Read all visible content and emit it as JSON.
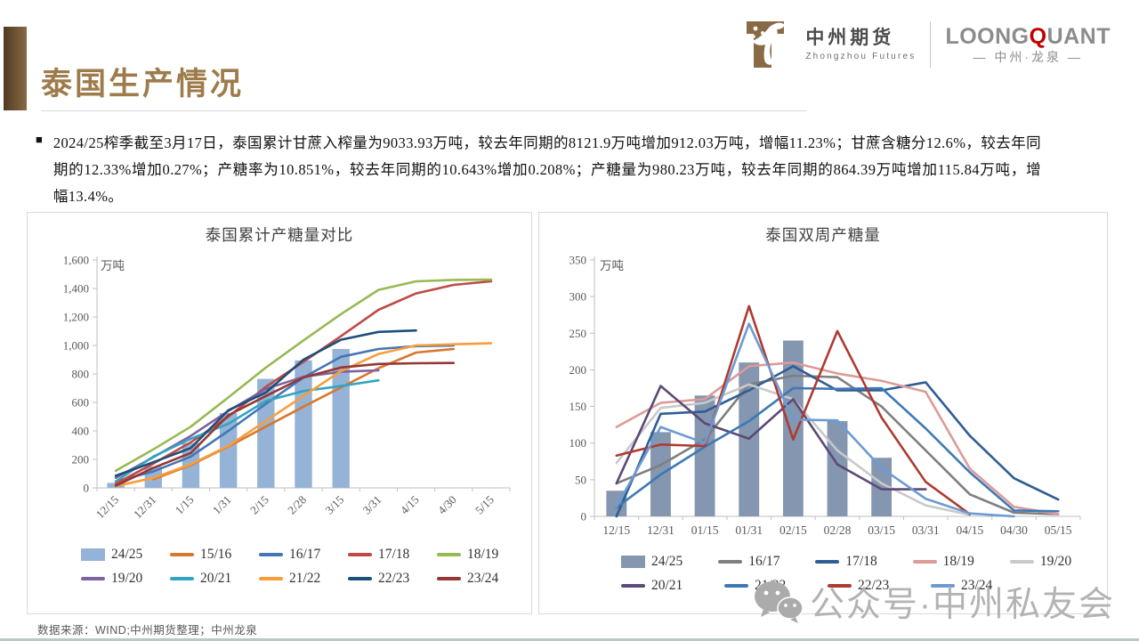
{
  "page": {
    "title": "泰国生产情况"
  },
  "header": {
    "logo1": {
      "name_cn": "中州期货",
      "name_en": "Zhongzhou Futures"
    },
    "logo2": {
      "brand_pre": "LOONG",
      "brand_q": "Q",
      "brand_post": "UANT",
      "sub": "— 中州·龙泉 —"
    }
  },
  "bullet": {
    "marker": "■",
    "text": "2024/25榨季截至3月17日，泰国累计甘蔗入榨量为9033.93万吨，较去年同期的8121.9万吨增加912.03万吨，增幅11.23%；甘蔗含糖分12.6%，较去年同期的12.33%增加0.27%；产糖率为10.851%，较去年同期的10.643%增加0.208%；产糖量为980.23万吨，较去年同期的864.39万吨增加115.84万吨，增幅13.4%。"
  },
  "source_note": "数据来源：WIND;中州期货整理；中州龙泉",
  "watermark": {
    "icon": "wechat-icon",
    "text": "公众号·中州私友会"
  },
  "colors": {
    "title_brown": "#9e7b4a",
    "bar_block_brown": "#7a5a38",
    "brand_red": "#c00000",
    "axis_gray": "#bfbfbf"
  },
  "chart_data": [
    {
      "type": "bar+line",
      "title": "泰国累计产糖量对比",
      "ylabel": "万吨",
      "ylim": [
        0,
        1600
      ],
      "ytick_step": 200,
      "x_rotated": true,
      "legend_per_row": 5,
      "categories": [
        "12/15",
        "12/31",
        "1/15",
        "1/31",
        "2/15",
        "2/28",
        "3/15",
        "3/31",
        "4/15",
        "4/30",
        "5/15"
      ],
      "series": [
        {
          "name": "24/25",
          "type": "bar",
          "color": "#95b3d7",
          "values": [
            35,
            150,
            315,
            525,
            765,
            895,
            975,
            null,
            null,
            null,
            null
          ]
        },
        {
          "name": "15/16",
          "type": "line",
          "color": "#d9772e",
          "values": [
            null,
            60,
            160,
            290,
            430,
            570,
            705,
            840,
            950,
            975,
            null
          ]
        },
        {
          "name": "16/17",
          "type": "line",
          "color": "#4576b5",
          "values": [
            45,
            115,
            220,
            400,
            590,
            775,
            920,
            975,
            995,
            1000,
            null
          ]
        },
        {
          "name": "17/18",
          "type": "line",
          "color": "#be4b48",
          "values": [
            30,
            170,
            320,
            500,
            710,
            885,
            1065,
            1250,
            1365,
            1425,
            1450
          ]
        },
        {
          "name": "18/19",
          "type": "line",
          "color": "#98b954",
          "values": [
            120,
            270,
            430,
            635,
            845,
            1035,
            1220,
            1390,
            1450,
            1460,
            1462
          ]
        },
        {
          "name": "19/20",
          "type": "line",
          "color": "#7e62a1",
          "values": [
            70,
            215,
            365,
            540,
            695,
            780,
            815,
            825,
            null,
            null,
            null
          ]
        },
        {
          "name": "20/21",
          "type": "line",
          "color": "#33a5bf",
          "values": [
            45,
            220,
            345,
            450,
            610,
            680,
            715,
            755,
            null,
            null,
            null
          ]
        },
        {
          "name": "21/22",
          "type": "line",
          "color": "#f99d3b",
          "values": [
            12,
            70,
            165,
            295,
            470,
            645,
            820,
            940,
            1000,
            1008,
            1015
          ]
        },
        {
          "name": "22/23",
          "type": "line",
          "color": "#1f4e79",
          "values": [
            85,
            180,
            280,
            545,
            670,
            900,
            1040,
            1095,
            1105,
            null,
            null
          ]
        },
        {
          "name": "23/24",
          "type": "line",
          "color": "#953735",
          "values": [
            15,
            140,
            245,
            510,
            645,
            775,
            845,
            870,
            875,
            877,
            null
          ]
        }
      ]
    },
    {
      "type": "bar+line",
      "title": "泰国双周产糖量",
      "ylabel": "万吨",
      "ylim": [
        0,
        350
      ],
      "ytick_step": 50,
      "x_rotated": false,
      "legend_per_row": 5,
      "categories": [
        "12/15",
        "12/31",
        "01/15",
        "01/31",
        "02/15",
        "02/28",
        "03/15",
        "03/31",
        "04/15",
        "04/30",
        "05/15"
      ],
      "series": [
        {
          "name": "24/25",
          "type": "bar",
          "color": "#8496b0",
          "values": [
            35,
            115,
            165,
            210,
            240,
            130,
            80,
            null,
            null,
            null,
            null
          ]
        },
        {
          "name": "16/17",
          "type": "line",
          "color": "#7f7f7f",
          "values": [
            45,
            70,
            105,
            180,
            192,
            190,
            150,
            90,
            30,
            5,
            3
          ]
        },
        {
          "name": "17/18",
          "type": "line",
          "color": "#2f5d94",
          "values": [
            0,
            140,
            143,
            172,
            205,
            172,
            172,
            183,
            110,
            52,
            23
          ]
        },
        {
          "name": "18/19",
          "type": "line",
          "color": "#dc9b98",
          "values": [
            122,
            155,
            160,
            205,
            210,
            195,
            185,
            170,
            65,
            13,
            3
          ]
        },
        {
          "name": "19/20",
          "type": "line",
          "color": "#c9c9c9",
          "values": [
            73,
            148,
            155,
            180,
            160,
            90,
            45,
            15,
            2,
            null,
            null
          ]
        },
        {
          "name": "20/21",
          "type": "line",
          "color": "#5b4a77",
          "values": [
            45,
            178,
            127,
            106,
            160,
            71,
            37,
            37,
            null,
            null,
            null
          ]
        },
        {
          "name": "21/22",
          "type": "line",
          "color": "#3e78b5",
          "values": [
            12,
            57,
            95,
            130,
            175,
            174,
            175,
            120,
            60,
            8,
            7
          ]
        },
        {
          "name": "22/23",
          "type": "line",
          "color": "#ae3b32",
          "values": [
            83,
            98,
            96,
            287,
            105,
            253,
            135,
            47,
            3,
            null,
            null
          ]
        },
        {
          "name": "23/24",
          "type": "line",
          "color": "#6c9bd2",
          "values": [
            13,
            122,
            100,
            263,
            132,
            131,
            66,
            24,
            4,
            0,
            null
          ]
        }
      ]
    }
  ]
}
